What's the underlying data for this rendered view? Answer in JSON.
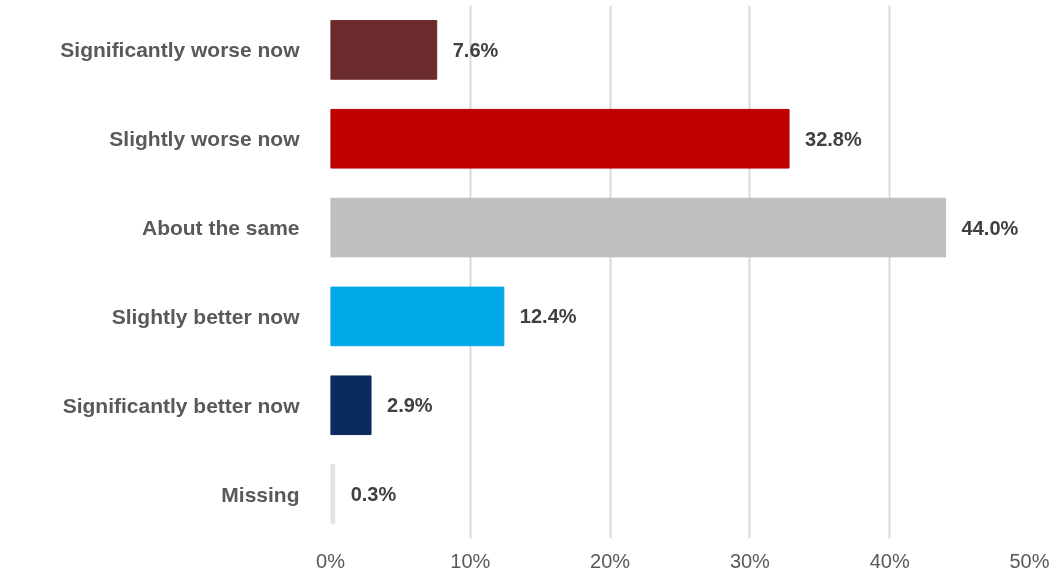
{
  "chart_data": {
    "type": "bar",
    "orientation": "horizontal",
    "categories": [
      "Significantly worse now",
      "Slightly worse now",
      "About the same",
      "Slightly better now",
      "Significantly better now",
      "Missing"
    ],
    "values": [
      7.6,
      32.8,
      44.0,
      12.4,
      2.9,
      0.3
    ],
    "colors": [
      "#6b2a2b",
      "#c00000",
      "#bfbfbf",
      "#00a8e8",
      "#0a2b5e",
      "#e3e3e3"
    ],
    "value_labels": [
      "7.6%",
      "32.8%",
      "44.0%",
      "12.4%",
      "2.9%",
      "0.3%"
    ],
    "xlim": [
      0,
      50
    ],
    "xticks": [
      {
        "value": 0,
        "label": "0%"
      },
      {
        "value": 10,
        "label": "10%"
      },
      {
        "value": 20,
        "label": "20%"
      },
      {
        "value": 30,
        "label": "30%"
      },
      {
        "value": 40,
        "label": "40%"
      },
      {
        "value": 50,
        "label": "50%"
      }
    ],
    "grid": "x"
  }
}
